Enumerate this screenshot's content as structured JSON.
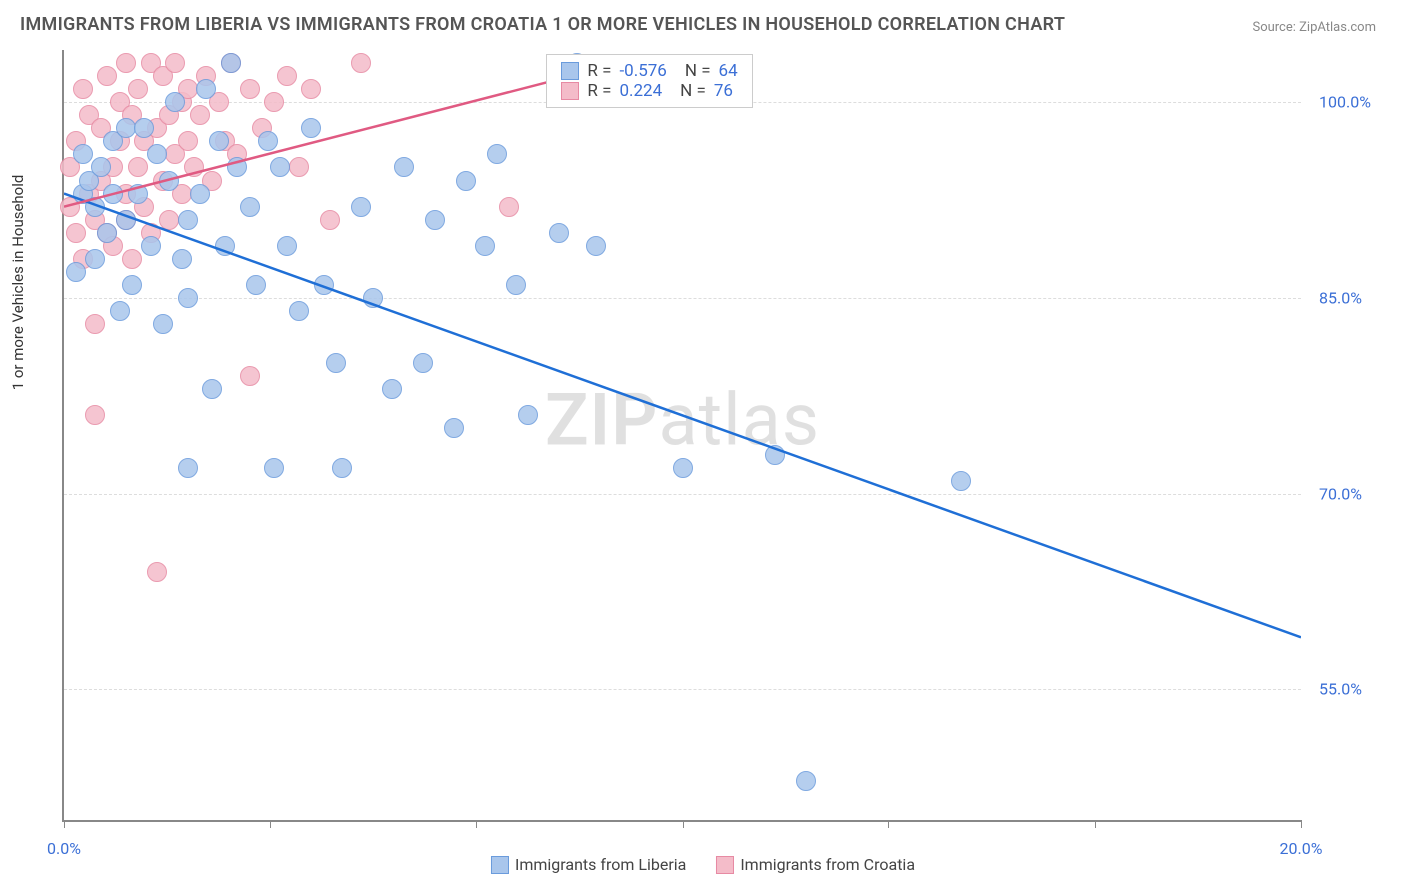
{
  "title": "IMMIGRANTS FROM LIBERIA VS IMMIGRANTS FROM CROATIA 1 OR MORE VEHICLES IN HOUSEHOLD CORRELATION CHART",
  "source": "Source: ZipAtlas.com",
  "y_axis_label": "1 or more Vehicles in Household",
  "watermark_a": "ZIP",
  "watermark_b": "atlas",
  "xlim": [
    0,
    20
  ],
  "ylim": [
    45,
    104
  ],
  "x_ticks": [
    0,
    3.33,
    6.66,
    10,
    13.33,
    16.67,
    20
  ],
  "x_tick_labels": {
    "0": "0.0%",
    "20": "20.0%"
  },
  "y_gridlines": [
    55,
    70,
    85,
    100
  ],
  "y_tick_labels": {
    "55": "55.0%",
    "70": "70.0%",
    "85": "85.0%",
    "100": "100.0%"
  },
  "plot_bg": "#ffffff",
  "grid_color": "#dddddd",
  "series": {
    "liberia": {
      "label": "Immigrants from Liberia",
      "fill": "#a9c6ec",
      "stroke": "#6a9bdc",
      "line_color": "#1f6fd6",
      "R": "-0.576",
      "N": "64",
      "trend": {
        "x1": 0,
        "y1": 93,
        "x2": 20,
        "y2": 59
      },
      "points": [
        [
          0.2,
          87
        ],
        [
          0.3,
          93
        ],
        [
          0.3,
          96
        ],
        [
          0.4,
          94
        ],
        [
          0.5,
          88
        ],
        [
          0.5,
          92
        ],
        [
          0.6,
          95
        ],
        [
          0.7,
          90
        ],
        [
          0.8,
          93
        ],
        [
          0.8,
          97
        ],
        [
          0.9,
          84
        ],
        [
          1.0,
          91
        ],
        [
          1.0,
          98
        ],
        [
          1.1,
          86
        ],
        [
          1.2,
          93
        ],
        [
          1.3,
          98
        ],
        [
          1.4,
          89
        ],
        [
          1.5,
          96
        ],
        [
          1.6,
          83
        ],
        [
          1.7,
          94
        ],
        [
          1.8,
          100
        ],
        [
          1.9,
          88
        ],
        [
          2.0,
          91
        ],
        [
          2.0,
          85
        ],
        [
          2.2,
          93
        ],
        [
          2.3,
          101
        ],
        [
          2.4,
          78
        ],
        [
          2.5,
          97
        ],
        [
          2.6,
          89
        ],
        [
          2.7,
          103
        ],
        [
          2.8,
          95
        ],
        [
          3.0,
          92
        ],
        [
          3.1,
          86
        ],
        [
          3.3,
          97
        ],
        [
          3.4,
          72
        ],
        [
          3.5,
          95
        ],
        [
          3.6,
          89
        ],
        [
          3.8,
          84
        ],
        [
          4.0,
          98
        ],
        [
          4.2,
          86
        ],
        [
          4.4,
          80
        ],
        [
          4.5,
          72
        ],
        [
          4.8,
          92
        ],
        [
          5.0,
          85
        ],
        [
          5.3,
          78
        ],
        [
          5.5,
          95
        ],
        [
          5.8,
          80
        ],
        [
          6.0,
          91
        ],
        [
          6.3,
          75
        ],
        [
          6.5,
          94
        ],
        [
          6.8,
          89
        ],
        [
          7.0,
          96
        ],
        [
          7.3,
          86
        ],
        [
          7.5,
          76
        ],
        [
          8.0,
          90
        ],
        [
          8.3,
          103
        ],
        [
          8.6,
          89
        ],
        [
          10.0,
          72
        ],
        [
          11.5,
          73
        ],
        [
          12.0,
          48
        ],
        [
          14.5,
          71
        ],
        [
          2.0,
          72
        ]
      ]
    },
    "croatia": {
      "label": "Immigrants from Croatia",
      "fill": "#f4bcc9",
      "stroke": "#e78aa3",
      "line_color": "#e05a82",
      "R": "0.224",
      "N": "76",
      "trend": {
        "x1": 0,
        "y1": 92,
        "x2": 8.2,
        "y2": 102
      },
      "points": [
        [
          0.1,
          92
        ],
        [
          0.1,
          95
        ],
        [
          0.2,
          90
        ],
        [
          0.2,
          97
        ],
        [
          0.3,
          88
        ],
        [
          0.3,
          101
        ],
        [
          0.4,
          93
        ],
        [
          0.4,
          99
        ],
        [
          0.5,
          91
        ],
        [
          0.5,
          76
        ],
        [
          0.5,
          83
        ],
        [
          0.6,
          94
        ],
        [
          0.6,
          98
        ],
        [
          0.7,
          90
        ],
        [
          0.7,
          102
        ],
        [
          0.8,
          95
        ],
        [
          0.8,
          89
        ],
        [
          0.9,
          97
        ],
        [
          0.9,
          100
        ],
        [
          1.0,
          91
        ],
        [
          1.0,
          93
        ],
        [
          1.0,
          103
        ],
        [
          1.1,
          88
        ],
        [
          1.1,
          99
        ],
        [
          1.2,
          95
        ],
        [
          1.2,
          101
        ],
        [
          1.3,
          92
        ],
        [
          1.3,
          97
        ],
        [
          1.4,
          103
        ],
        [
          1.4,
          90
        ],
        [
          1.5,
          64
        ],
        [
          1.5,
          98
        ],
        [
          1.6,
          94
        ],
        [
          1.6,
          102
        ],
        [
          1.7,
          91
        ],
        [
          1.7,
          99
        ],
        [
          1.8,
          96
        ],
        [
          1.8,
          103
        ],
        [
          1.9,
          93
        ],
        [
          1.9,
          100
        ],
        [
          2.0,
          97
        ],
        [
          2.0,
          101
        ],
        [
          2.1,
          95
        ],
        [
          2.2,
          99
        ],
        [
          2.3,
          102
        ],
        [
          2.4,
          94
        ],
        [
          2.5,
          100
        ],
        [
          2.6,
          97
        ],
        [
          2.7,
          103
        ],
        [
          2.8,
          96
        ],
        [
          3.0,
          79
        ],
        [
          3.0,
          101
        ],
        [
          3.2,
          98
        ],
        [
          3.4,
          100
        ],
        [
          3.6,
          102
        ],
        [
          3.8,
          95
        ],
        [
          4.0,
          101
        ],
        [
          4.3,
          91
        ],
        [
          4.8,
          103
        ],
        [
          7.2,
          92
        ]
      ]
    }
  },
  "legend_stats_prefix_r": "R = ",
  "legend_stats_prefix_n": "N = ",
  "point_radius": 10
}
